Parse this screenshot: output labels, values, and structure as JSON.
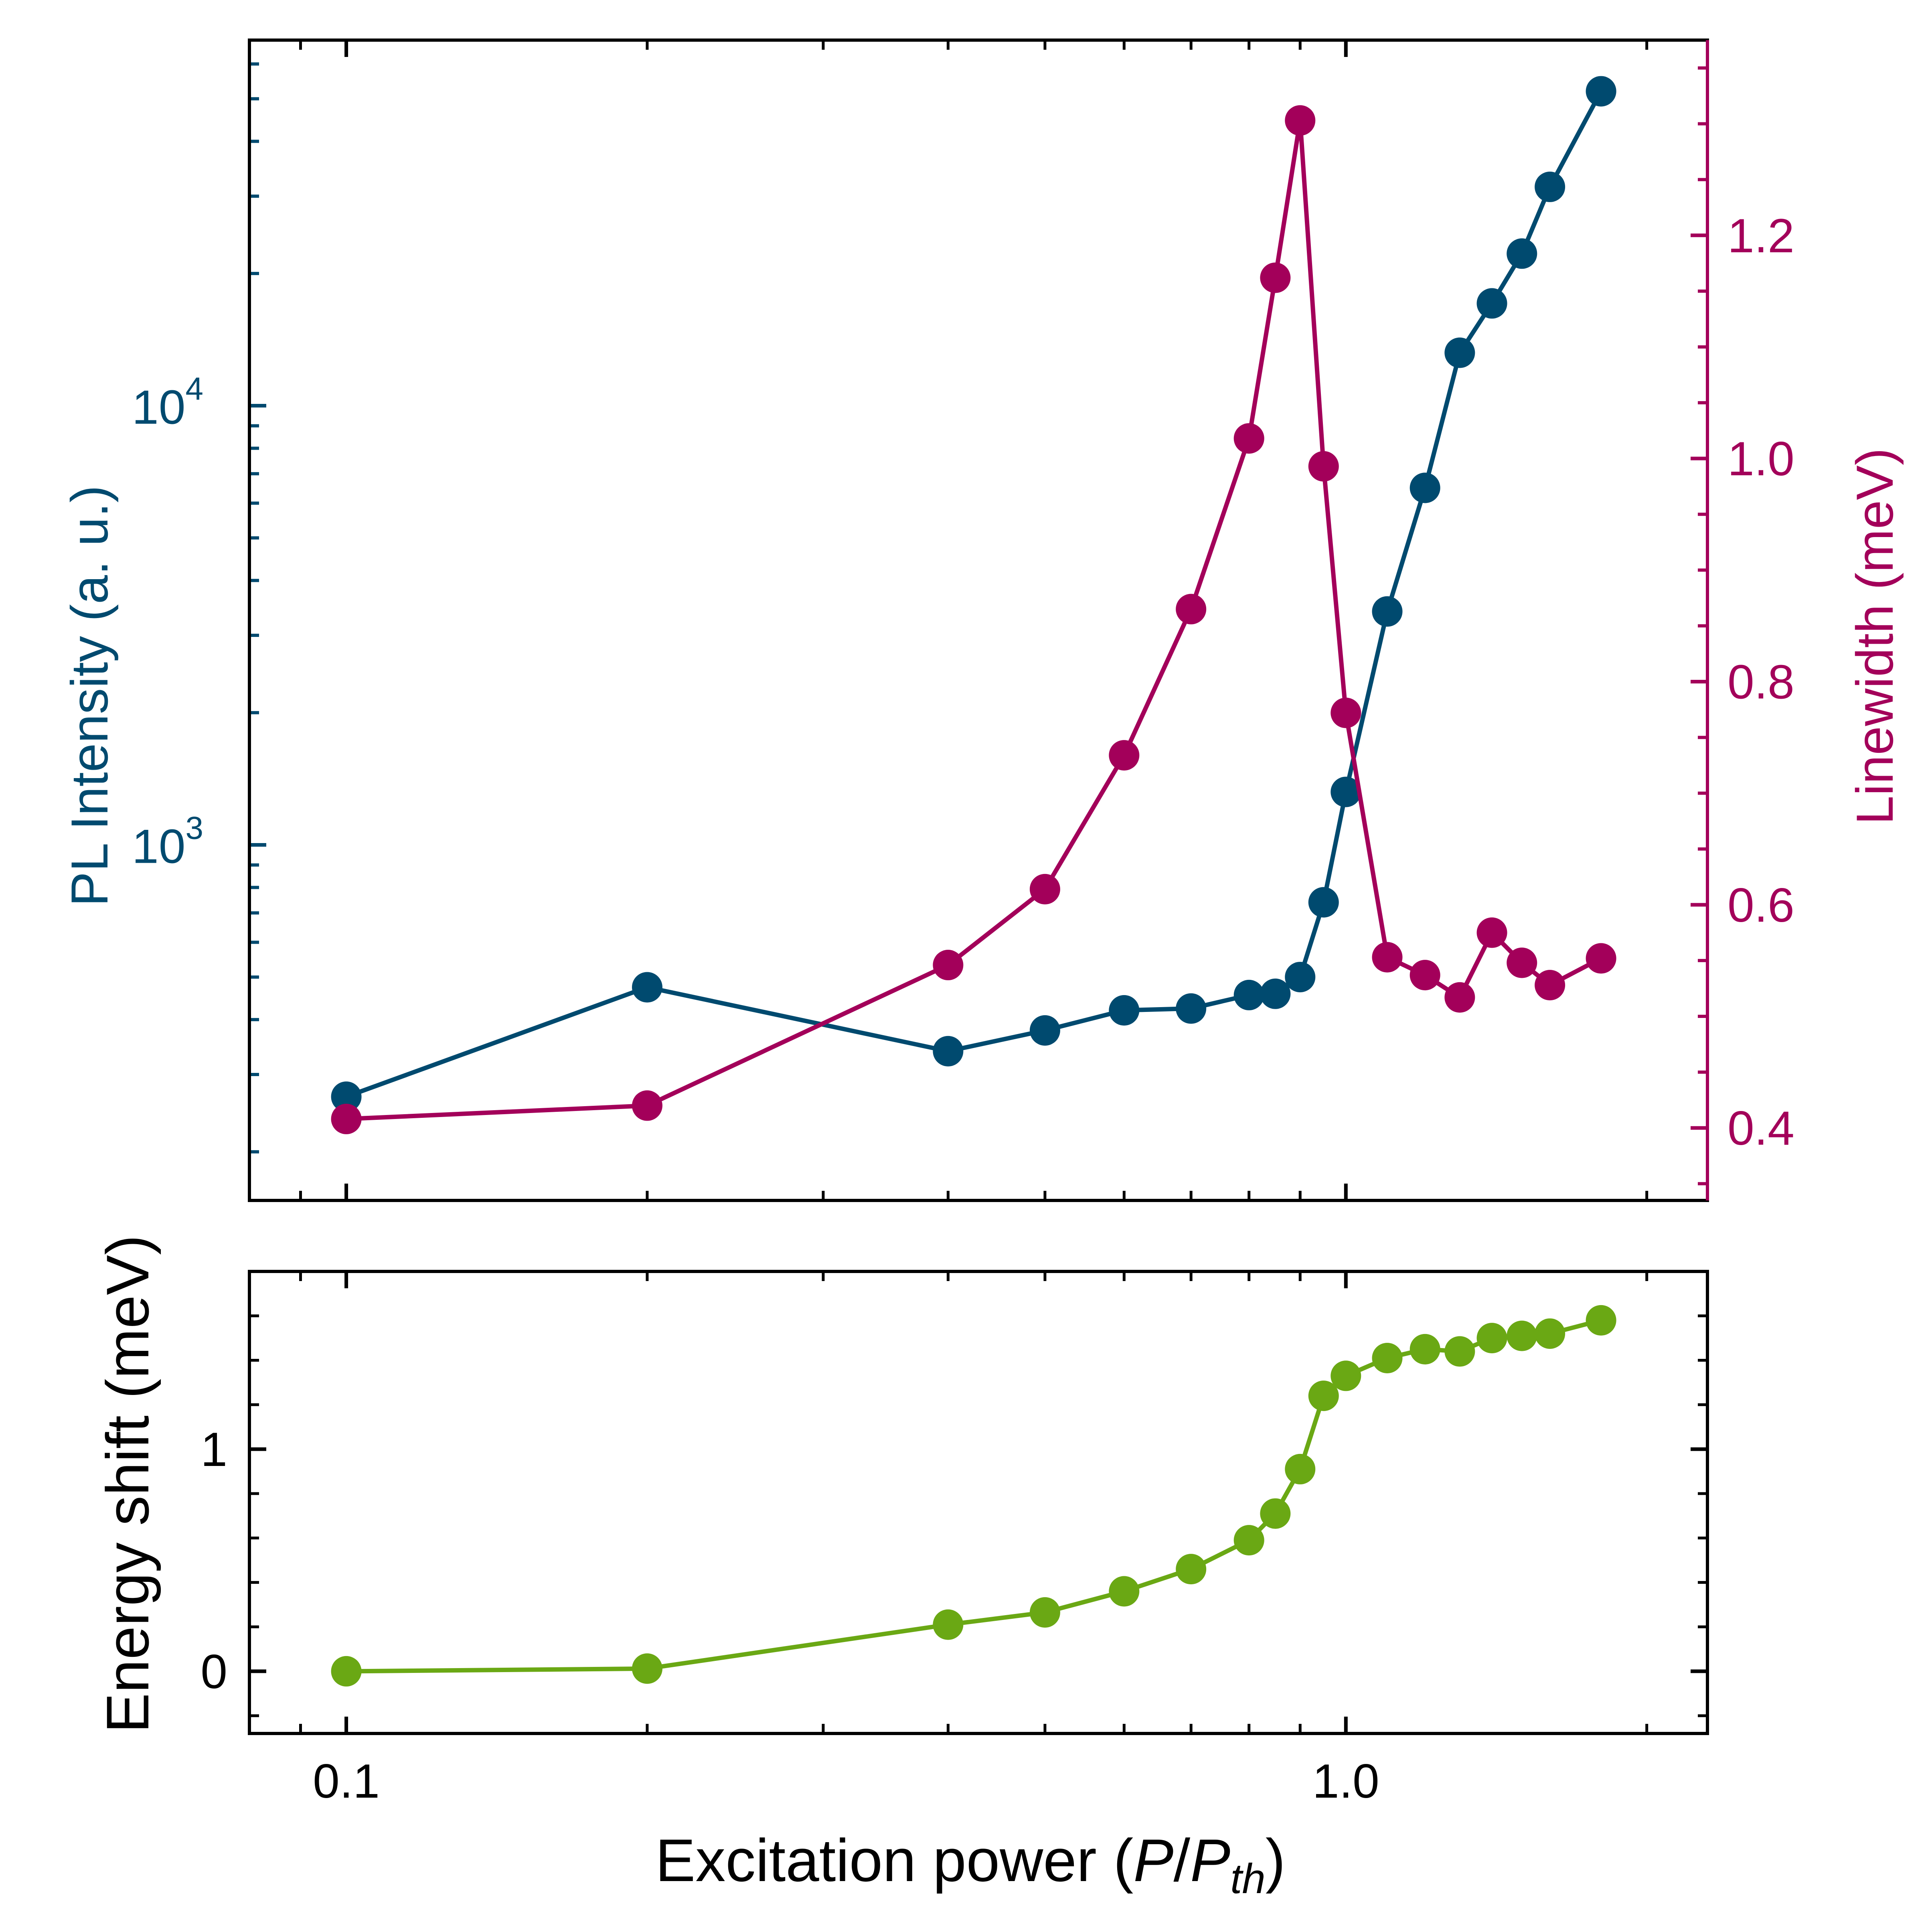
{
  "colors": {
    "intensity": "#004a6f",
    "linewidth": "#a3005a",
    "shift": "#6aa814",
    "axis": "#000000",
    "background": "#ffffff"
  },
  "chart_data": [
    {
      "type": "line",
      "panel": "top",
      "x_scale": "log",
      "xlim": [
        0.08,
        2.3
      ],
      "x_ticks": [
        "0.1",
        "1.0"
      ],
      "ylabel_left": "PL Intensity (a. u.)",
      "ylabel_right": "Linewidth (meV)",
      "y_left": {
        "scale": "log",
        "ylim": [
          155,
          68000
        ],
        "tick_labels": [
          {
            "value": 1000,
            "base": "10",
            "exp": "3"
          },
          {
            "value": 10000,
            "base": "10",
            "exp": "4"
          }
        ]
      },
      "y_right": {
        "scale": "linear",
        "ylim": [
          0.335,
          1.375
        ],
        "ticks": [
          0.4,
          0.6,
          0.8,
          1.0,
          1.2
        ],
        "tick_labels": [
          "0.4",
          "0.6",
          "0.8",
          "1.0",
          "1.2"
        ]
      },
      "series": [
        {
          "key": "intensity",
          "axis": "left",
          "color": "#004a6f",
          "x": [
            0.1,
            0.2,
            0.4,
            0.5,
            0.6,
            0.7,
            0.8,
            0.85,
            0.9,
            0.95,
            1.0,
            1.1,
            1.2,
            1.3,
            1.4,
            1.5,
            1.6,
            1.8
          ],
          "y": [
            267,
            474,
            339,
            378,
            420,
            424,
            455,
            458,
            500,
            740,
            1320,
            3400,
            6500,
            13200,
            17100,
            22200,
            31500,
            52000
          ]
        },
        {
          "key": "linewidth",
          "axis": "right",
          "color": "#a3005a",
          "x": [
            0.1,
            0.2,
            0.4,
            0.5,
            0.6,
            0.7,
            0.8,
            0.85,
            0.9,
            0.95,
            1.0,
            1.1,
            1.2,
            1.3,
            1.4,
            1.5,
            1.6,
            1.8
          ],
          "y": [
            0.408,
            0.42,
            0.546,
            0.614,
            0.734,
            0.865,
            1.018,
            1.162,
            1.303,
            0.993,
            0.772,
            0.553,
            0.537,
            0.517,
            0.575,
            0.548,
            0.528,
            0.552
          ]
        }
      ]
    },
    {
      "type": "line",
      "panel": "bottom",
      "x_scale": "log",
      "xlim": [
        0.08,
        2.3
      ],
      "xlabel": "Excitation power (",
      "xlabel_var": "P",
      "xlabel_slash": "/",
      "xlabel_var2": "P",
      "xlabel_sub": "th",
      "xlabel_close": ")",
      "ylabel": "Energy shift (meV)",
      "ylim": [
        -0.28,
        1.8
      ],
      "y_ticks": [
        0,
        1
      ],
      "y_tick_labels": [
        "0",
        "1"
      ],
      "x_tick_labels": [
        "0.1",
        "1.0"
      ],
      "series": [
        {
          "key": "shift",
          "color": "#6aa814",
          "x": [
            0.1,
            0.2,
            0.4,
            0.5,
            0.6,
            0.7,
            0.8,
            0.85,
            0.9,
            0.95,
            1.0,
            1.1,
            1.2,
            1.3,
            1.4,
            1.5,
            1.6,
            1.8
          ],
          "y": [
            0.0,
            0.012,
            0.21,
            0.265,
            0.36,
            0.46,
            0.59,
            0.71,
            0.91,
            1.24,
            1.33,
            1.41,
            1.45,
            1.44,
            1.5,
            1.51,
            1.52,
            1.58
          ]
        }
      ]
    }
  ]
}
